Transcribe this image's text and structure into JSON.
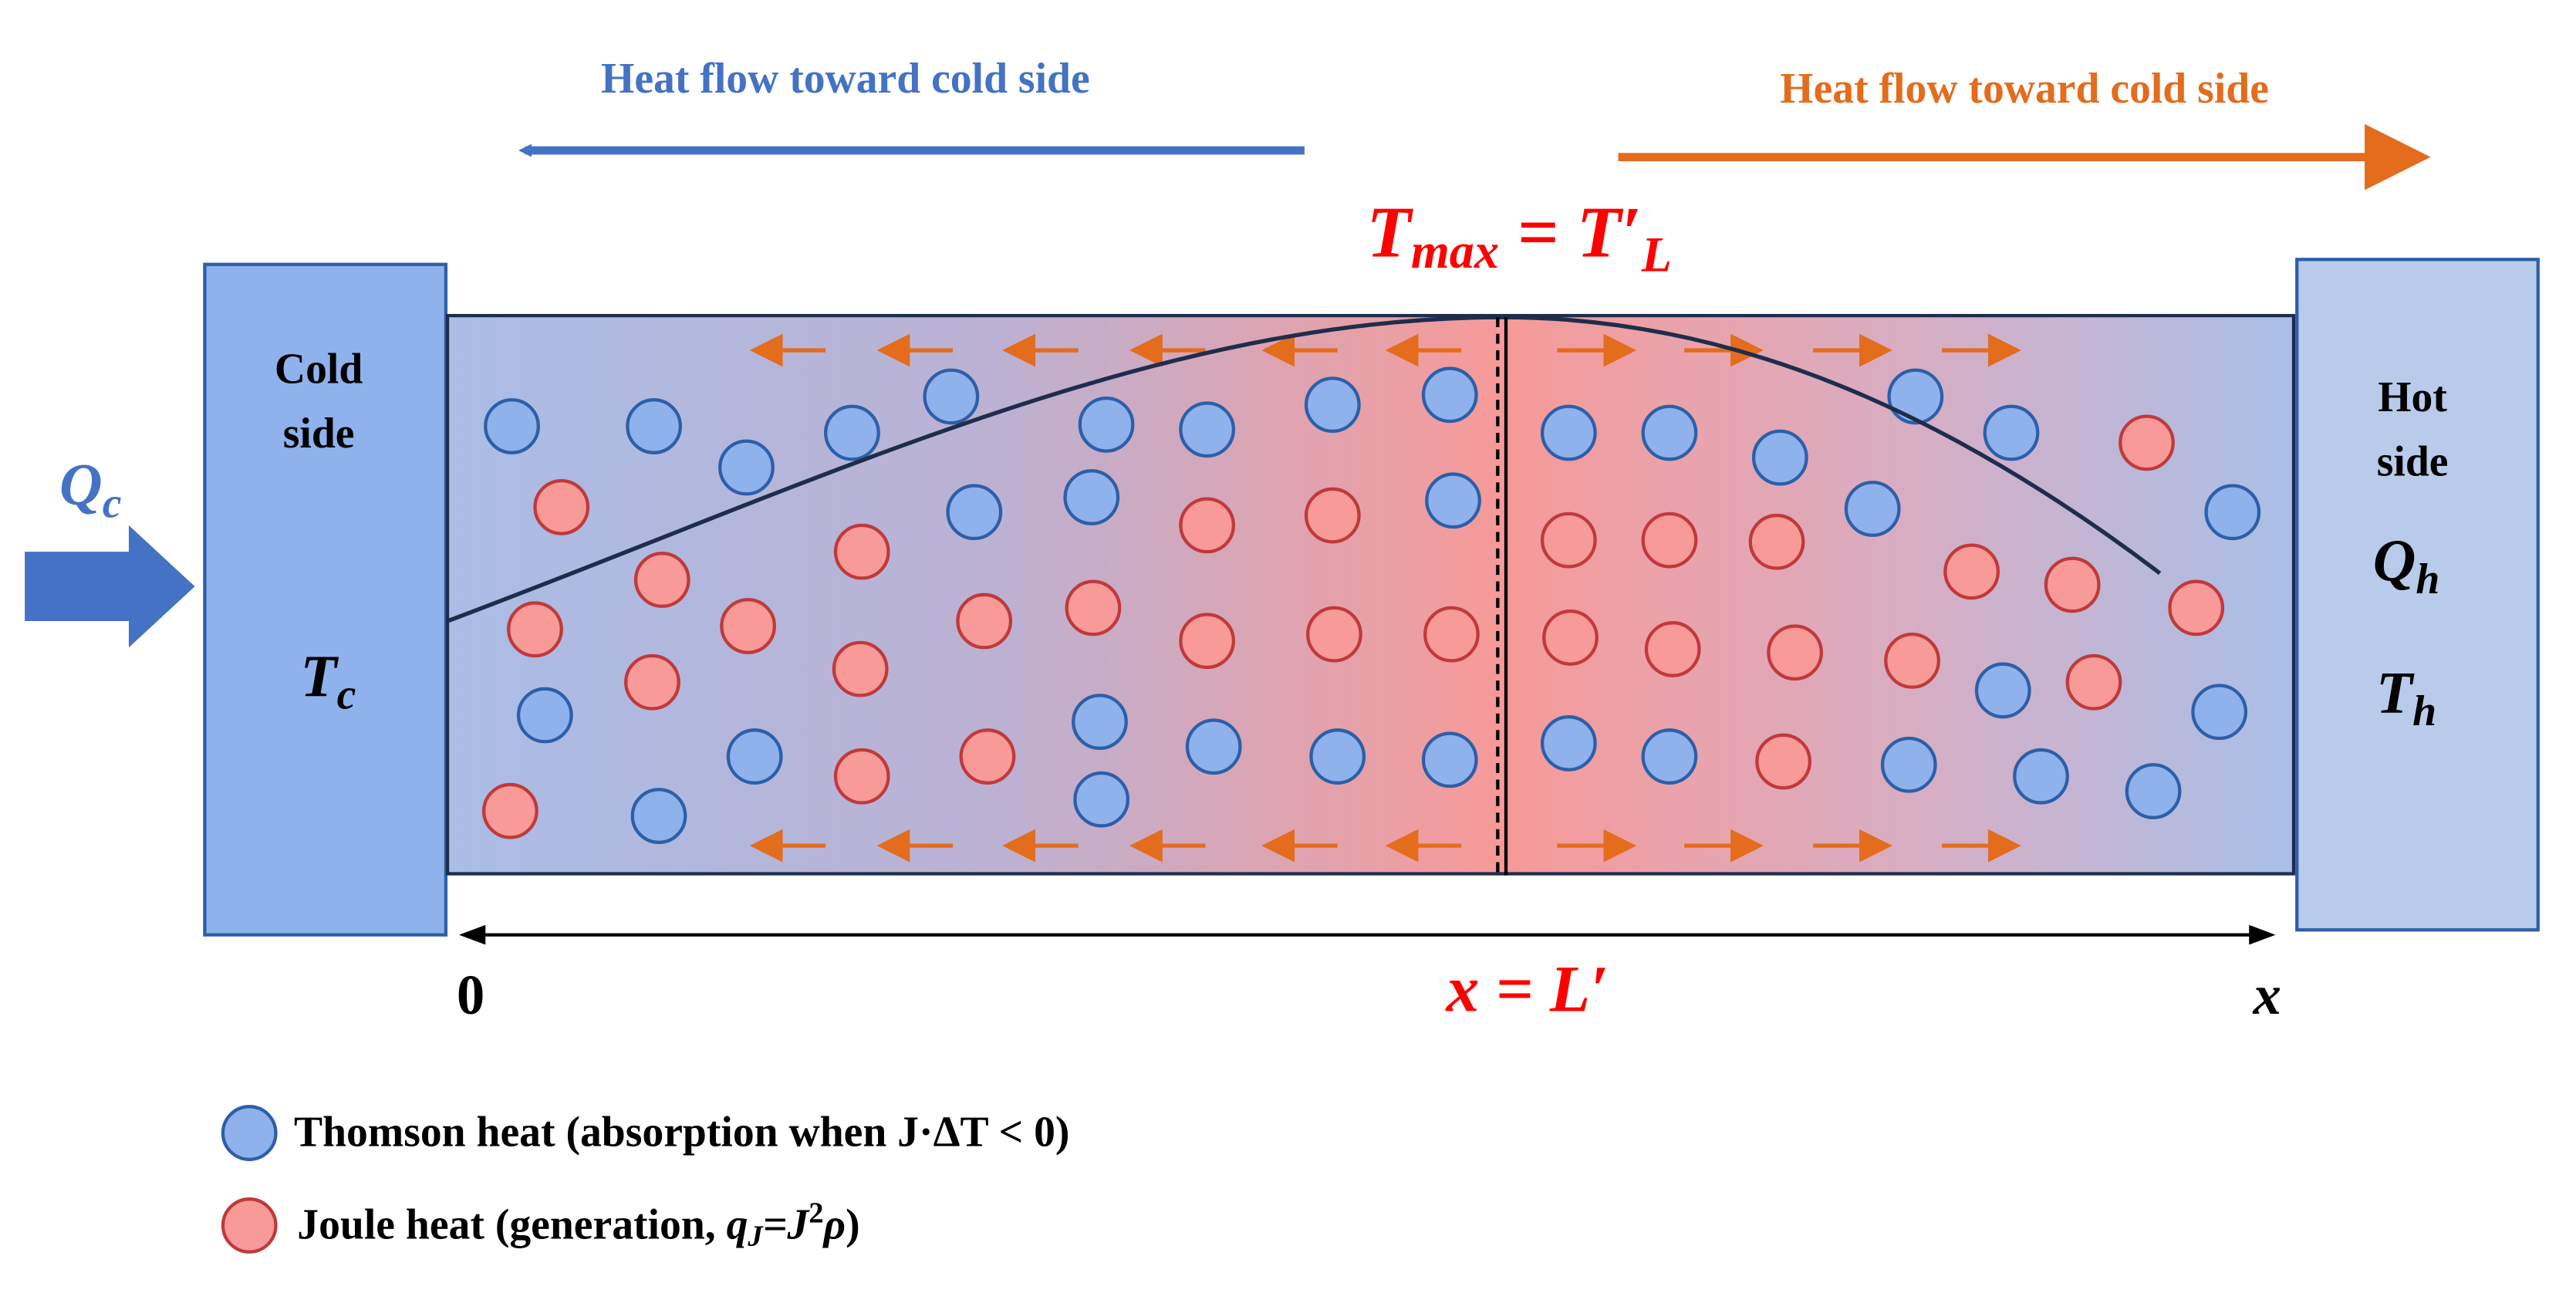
{
  "flow_arrows": {
    "left": "Heat flow toward cold side",
    "right": "Heat flow toward cold side"
  },
  "peak_label": {
    "t": "T",
    "sub": "max",
    "rest": " = T′",
    "sub2": "L"
  },
  "cold_side": {
    "line1": "Cold",
    "line2": "side",
    "temp": "T",
    "temp_sub": "c",
    "heat": "Q",
    "heat_sub": "c"
  },
  "hot_side": {
    "line1": "Hot",
    "line2": "side",
    "heat": "Q",
    "heat_sub": "h",
    "temp": "T",
    "temp_sub": "h"
  },
  "axis": {
    "start": "0",
    "mid": "x = L′",
    "end": "x"
  },
  "legend": {
    "thomson": "Thomson heat (absorption when J·ΔT < 0)",
    "joule": {
      "text": "Joule heat (generation, ",
      "q": "q",
      "q_sub": "J",
      "eq": "=J",
      "sup": "2",
      "rho": "ρ",
      "close": ")"
    }
  }
}
